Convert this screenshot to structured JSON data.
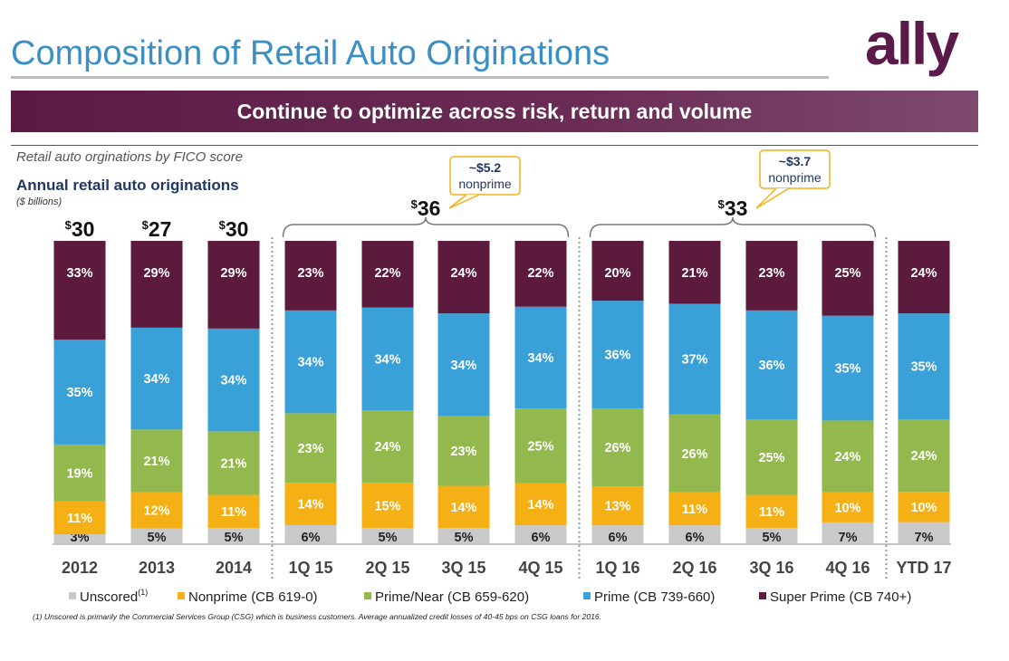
{
  "header": {
    "title": "Composition of Retail Auto Originations",
    "logo_text": "ally",
    "banner": "Continue to optimize across risk, return and volume",
    "subtitle": "Retail auto orginations by FICO score"
  },
  "colors": {
    "unscored": "#c9c9c9",
    "nonprime": "#f5b015",
    "prime_near": "#92b84e",
    "prime": "#3aa0d8",
    "super_prime": "#5c1a3d",
    "title": "#3a8fc4",
    "chart_title": "#1f3864"
  },
  "chart_data": {
    "type": "bar",
    "stacked": true,
    "title": "Annual retail auto originations",
    "unit_label": "($ billions)",
    "categories": [
      "2012",
      "2013",
      "2014",
      "1Q 15",
      "2Q 15",
      "3Q 15",
      "4Q 15",
      "1Q 16",
      "2Q 16",
      "3Q 16",
      "4Q 16",
      "YTD 17"
    ],
    "series": [
      {
        "name": "Unscored",
        "superscript": "(1)",
        "values": [
          3,
          5,
          5,
          6,
          5,
          5,
          6,
          6,
          6,
          5,
          7,
          7
        ]
      },
      {
        "name": "Nonprime (CB 619-0)",
        "values": [
          11,
          12,
          11,
          14,
          15,
          14,
          14,
          13,
          11,
          11,
          10,
          10
        ]
      },
      {
        "name": "Prime/Near (CB 659-620)",
        "values": [
          19,
          21,
          21,
          23,
          24,
          23,
          25,
          26,
          26,
          25,
          24,
          24
        ]
      },
      {
        "name": "Prime (CB 739-660)",
        "values": [
          35,
          34,
          34,
          34,
          34,
          34,
          34,
          36,
          37,
          36,
          35,
          35
        ]
      },
      {
        "name": "Super Prime (CB 740+)",
        "values": [
          33,
          29,
          29,
          23,
          22,
          24,
          22,
          20,
          21,
          23,
          25,
          24
        ]
      }
    ],
    "annual_totals": [
      {
        "label": "$30",
        "category": "2012"
      },
      {
        "label": "$27",
        "category": "2013"
      },
      {
        "label": "$30",
        "category": "2014"
      }
    ],
    "group_totals": [
      {
        "label": "$36",
        "from": "1Q 15",
        "to": "4Q 15",
        "callout": [
          "~$5.2",
          "nonprime"
        ]
      },
      {
        "label": "$33",
        "from": "1Q 16",
        "to": "4Q 16",
        "callout": [
          "~$3.7",
          "nonprime"
        ]
      }
    ],
    "ylim": [
      0,
      100
    ],
    "legend_position": "bottom"
  },
  "footnote": "(1) Unscored is primarily the Commercial Services Group (CSG) which is business customers. Average annualized credit losses of 40-45 bps on CSG loans for 2016."
}
